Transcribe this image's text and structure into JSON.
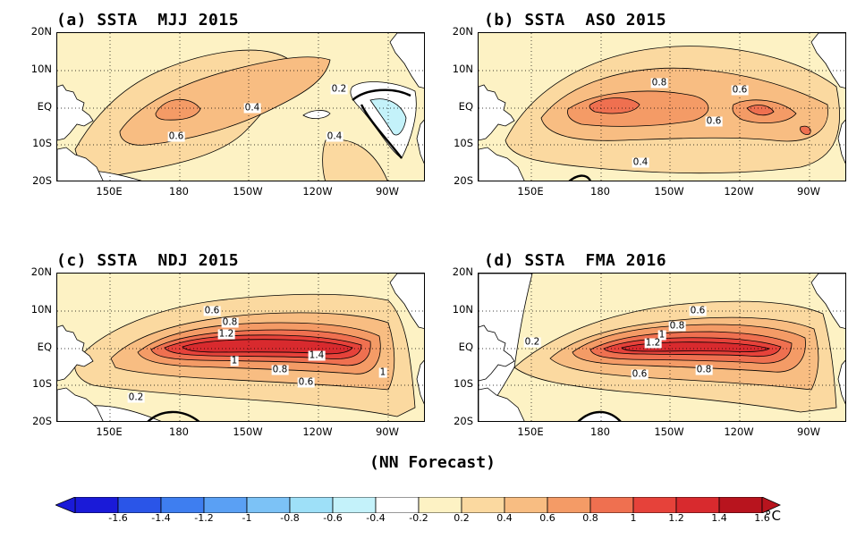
{
  "panels": [
    {
      "title": "(a) SSTA  MJJ 2015",
      "season": "MJJ",
      "year": "2015",
      "contour_labels": [
        "0.6",
        "0.4",
        "0.2",
        "0.4"
      ]
    },
    {
      "title": "(b) SSTA  ASO 2015",
      "season": "ASO",
      "year": "2015",
      "contour_labels": [
        "0.8",
        "0.6",
        "0.6",
        "0.4"
      ]
    },
    {
      "title": "(c) SSTA  NDJ 2015",
      "season": "NDJ",
      "year": "2015",
      "contour_labels": [
        "0.6",
        "0.8",
        "1.2",
        "1",
        "1.4",
        "0.8",
        "1",
        "0.6",
        "0.2"
      ]
    },
    {
      "title": "(d) SSTA  FMA 2016",
      "season": "FMA",
      "year": "2016",
      "contour_labels": [
        "0.6",
        "0.8",
        "1",
        "1.2",
        "0.2",
        "0.8",
        "0.6"
      ]
    }
  ],
  "lat_labels": [
    "20N",
    "10N",
    "EQ",
    "10S",
    "20S"
  ],
  "lon_labels": [
    "150E",
    "180",
    "150W",
    "120W",
    "90W"
  ],
  "footer": "(NN Forecast)",
  "colorbar": {
    "ticks": [
      "-1.6",
      "-1.4",
      "-1.2",
      "-1",
      "-0.8",
      "-0.6",
      "-0.4",
      "-0.2",
      "0.2",
      "0.4",
      "0.6",
      "0.8",
      "1",
      "1.2",
      "1.4",
      "1.6"
    ],
    "unit": "°C",
    "colors": [
      "#1a1ad8",
      "#2a55e8",
      "#3e7ef0",
      "#5aa0f4",
      "#7cc2f6",
      "#9ee0f8",
      "#c4f2fa",
      "#ffffff",
      "#fdf2c4",
      "#fbd9a0",
      "#f8bd82",
      "#f49b66",
      "#ef7050",
      "#e6423a",
      "#d82a2e",
      "#b8141e"
    ]
  },
  "fills": {
    "f02": "#fdf2c4",
    "f04": "#fbd9a0",
    "f06": "#f8bd82",
    "f08": "#f49b66",
    "f10": "#ef7050",
    "f12": "#e6423a",
    "f14": "#d82a2e",
    "neg": "#c4f2fa",
    "white": "#ffffff"
  }
}
